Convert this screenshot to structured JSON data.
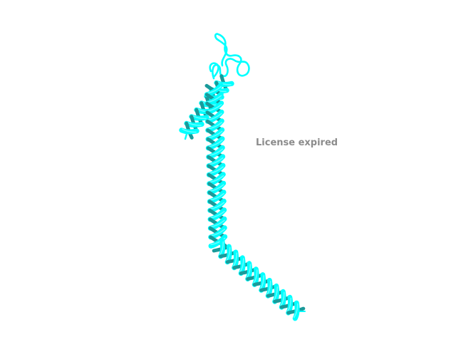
{
  "viewer": {
    "watermark_text": "License expired",
    "background_color": "#ffffff",
    "structure": {
      "representation": "cartoon",
      "color": "#00ffff",
      "shade_color": "#1a9a9a",
      "highlight_color": "#7fffff"
    }
  }
}
